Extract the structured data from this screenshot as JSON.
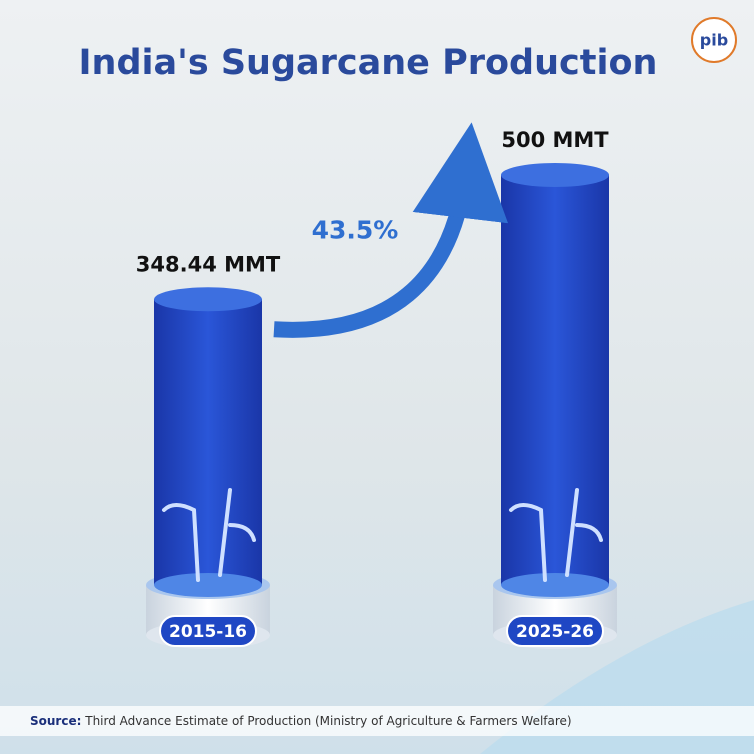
{
  "chart_data": {
    "type": "cylinder-bar",
    "title": "India's Sugarcane Production",
    "logo": "pib",
    "categories": [
      "2015-16",
      "2025-26"
    ],
    "values": [
      348.44,
      500
    ],
    "value_labels": [
      "348.44 MMT",
      "500 MMT"
    ],
    "growth_label": "43.5%",
    "color": "#1f47c4",
    "source_label": "Source:",
    "source_text": "Third Advance Estimate of Production (Ministry of Agriculture & Farmers Welfare)"
  }
}
